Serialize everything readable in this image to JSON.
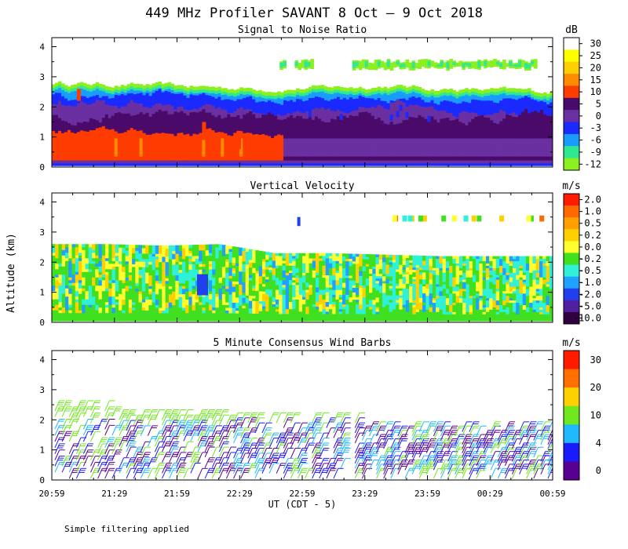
{
  "figure": {
    "title": "449 MHz Profiler SAVANT  8 Oct –  9 Oct 2018",
    "ylabel": "Altitude (km)",
    "xlabel": "UT  (CDT - 5)",
    "xticks": [
      "20:59",
      "21:29",
      "21:59",
      "22:29",
      "22:59",
      "23:29",
      "23:59",
      "00:29",
      "00:59"
    ],
    "yticks": [
      "0",
      "1",
      "2",
      "3",
      "4"
    ],
    "footnote": "Simple filtering applied"
  },
  "chart_data": [
    {
      "type": "heatmap",
      "title": "Signal to Noise Ratio",
      "xlabel": "UT  (CDT - 5)",
      "ylabel": "Altitude (km)",
      "xlim": [
        "20:59",
        "00:59"
      ],
      "ylim": [
        0,
        4.3
      ],
      "colorbar_unit": "dB",
      "colorbar_labels": [
        "30",
        "25",
        "20",
        "15",
        "10",
        "5",
        "0",
        "-3",
        "-6",
        "-9",
        "-12"
      ],
      "colorbar_colors": [
        "#ffffff",
        "#ffff00",
        "#ffd000",
        "#ff8c00",
        "#ff3c00",
        "#4a0a6a",
        "#6a2fa0",
        "#1a2aff",
        "#1a9cff",
        "#30e890",
        "#8cf020"
      ],
      "data_top_km": [
        2.8,
        2.75,
        2.7,
        2.65,
        2.6,
        2.65,
        2.7,
        2.6,
        2.55,
        2.5
      ],
      "upper_layer_km": [
        3.2,
        3.6
      ]
    },
    {
      "type": "heatmap",
      "title": "Vertical Velocity",
      "xlabel": "UT  (CDT - 5)",
      "ylabel": "Altitude (km)",
      "xlim": [
        "20:59",
        "00:59"
      ],
      "ylim": [
        0,
        4.3
      ],
      "colorbar_unit": "m/s",
      "colorbar_labels": [
        "2.0",
        "1.0",
        "0.5",
        "0.2",
        "0.0",
        "-0.2",
        "-0.5",
        "-1.0",
        "-2.0",
        "-5.0",
        "-10.0"
      ],
      "colorbar_colors": [
        "#ff1a00",
        "#ff6a00",
        "#ffa000",
        "#ffd000",
        "#ffff30",
        "#40e020",
        "#30f0d8",
        "#20a0ff",
        "#2040f0",
        "#5020a0",
        "#300040"
      ],
      "data_top_km": [
        2.6,
        2.6,
        2.55,
        2.6,
        2.3,
        2.3,
        2.25,
        2.2,
        2.2,
        2.2
      ]
    },
    {
      "type": "scatter",
      "title": "5 Minute Consensus Wind Barbs",
      "xlabel": "UT  (CDT - 5)",
      "ylabel": "Altitude (km)",
      "xlim": [
        "20:59",
        "00:59"
      ],
      "ylim": [
        0,
        4.3
      ],
      "colorbar_unit": "m/s",
      "colorbar_labels": [
        "30",
        "20",
        "10",
        "4",
        "0"
      ],
      "colorbar_colors": [
        "#ff1a00",
        "#ff7000",
        "#ffd000",
        "#70e820",
        "#20b8ff",
        "#1a1aff",
        "#5a0090"
      ],
      "barb_altitude_range_km": [
        0.05,
        2.4
      ]
    }
  ]
}
